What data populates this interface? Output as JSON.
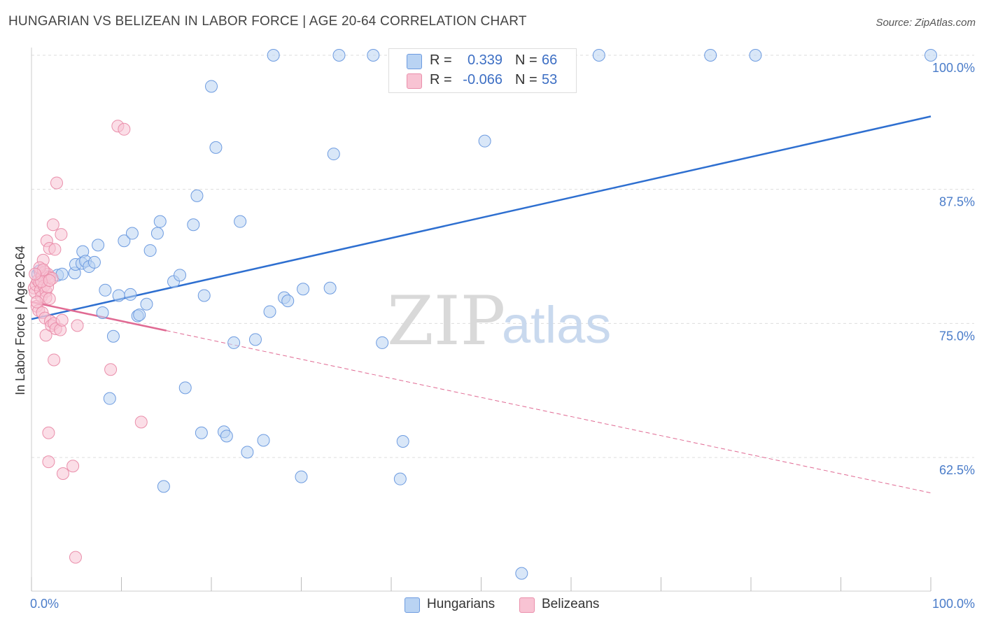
{
  "title": "HUNGARIAN VS BELIZEAN IN LABOR FORCE | AGE 20-64 CORRELATION CHART",
  "source": "Source: ZipAtlas.com",
  "watermark": {
    "zip": "ZIP",
    "atlas": "atlas"
  },
  "colors": {
    "blue_fill": "#b9d3f3",
    "blue_stroke": "#6d9be0",
    "blue_line": "#2e6fd0",
    "pink_fill": "#f8c3d3",
    "pink_stroke": "#ea8fab",
    "pink_line": "#e06a93",
    "grid": "#dddddd",
    "axis_text": "#4a7cc9"
  },
  "legend": {
    "rows": [
      {
        "r_label": "R =",
        "r_value": "0.339",
        "n_label": "N =",
        "n_value": "66",
        "color": "#b9d3f3"
      },
      {
        "r_label": "R =",
        "r_value": "-0.066",
        "n_label": "N =",
        "n_value": "53",
        "color": "#f8c3d3"
      }
    ]
  },
  "bottom_legend": [
    {
      "label": "Hungarians",
      "color": "#b9d3f3"
    },
    {
      "label": "Belizeans",
      "color": "#f8c3d3"
    }
  ],
  "chart_data": {
    "type": "scatter",
    "title": "HUNGARIAN VS BELIZEAN IN LABOR FORCE | AGE 20-64 CORRELATION CHART",
    "xlabel": "",
    "ylabel": "In Labor Force | Age 20-64",
    "xlim": [
      0,
      100
    ],
    "ylim": [
      51.5,
      100.5
    ],
    "y_gridlines": [
      62.5,
      75.0,
      87.5,
      100.0
    ],
    "y_tick_labels": [
      "62.5%",
      "75.0%",
      "87.5%",
      "100.0%"
    ],
    "x_tick_values": [
      0,
      10,
      20,
      30,
      40,
      50,
      60,
      70,
      80,
      90,
      100
    ],
    "x_tick_labels": [
      "0.0%",
      "100.0%"
    ],
    "legend_position": "top-center",
    "series": [
      {
        "name": "Hungarians",
        "r": 0.339,
        "n": 66,
        "trend": {
          "x": [
            0,
            100
          ],
          "y": [
            75.4,
            94.3
          ],
          "dashed_from": null
        },
        "points": [
          [
            0.7,
            79.6
          ],
          [
            0.9,
            79.9
          ],
          [
            1.1,
            79.4
          ],
          [
            1.3,
            79.2
          ],
          [
            1.6,
            79.4
          ],
          [
            2.9,
            79.5
          ],
          [
            3.4,
            79.6
          ],
          [
            4.8,
            79.7
          ],
          [
            4.9,
            80.5
          ],
          [
            5.6,
            80.6
          ],
          [
            5.7,
            81.7
          ],
          [
            6.0,
            80.8
          ],
          [
            6.4,
            80.3
          ],
          [
            7.0,
            80.7
          ],
          [
            7.4,
            82.3
          ],
          [
            7.9,
            76.0
          ],
          [
            8.2,
            78.1
          ],
          [
            8.7,
            68.0
          ],
          [
            9.1,
            73.8
          ],
          [
            9.7,
            77.6
          ],
          [
            10.3,
            82.7
          ],
          [
            11.0,
            77.7
          ],
          [
            11.2,
            83.4
          ],
          [
            11.8,
            75.7
          ],
          [
            12.0,
            75.8
          ],
          [
            12.8,
            76.8
          ],
          [
            13.2,
            81.8
          ],
          [
            14.0,
            83.4
          ],
          [
            14.3,
            84.5
          ],
          [
            14.7,
            59.8
          ],
          [
            15.8,
            78.9
          ],
          [
            16.5,
            79.5
          ],
          [
            17.1,
            69.0
          ],
          [
            18.0,
            84.2
          ],
          [
            18.4,
            86.9
          ],
          [
            18.9,
            64.8
          ],
          [
            19.2,
            77.6
          ],
          [
            20.0,
            97.1
          ],
          [
            20.5,
            91.4
          ],
          [
            21.4,
            64.9
          ],
          [
            21.7,
            64.5
          ],
          [
            22.5,
            73.2
          ],
          [
            23.2,
            84.5
          ],
          [
            24.0,
            63.0
          ],
          [
            24.9,
            73.5
          ],
          [
            25.8,
            64.1
          ],
          [
            26.5,
            76.1
          ],
          [
            26.9,
            100.0
          ],
          [
            28.1,
            77.4
          ],
          [
            28.5,
            77.1
          ],
          [
            30.0,
            60.7
          ],
          [
            30.2,
            78.2
          ],
          [
            33.2,
            78.3
          ],
          [
            33.6,
            90.8
          ],
          [
            34.2,
            100.0
          ],
          [
            38.0,
            100.0
          ],
          [
            39.0,
            73.2
          ],
          [
            41.0,
            60.5
          ],
          [
            41.3,
            64.0
          ],
          [
            47.3,
            100.0
          ],
          [
            50.4,
            92.0
          ],
          [
            54.5,
            51.7
          ],
          [
            63.1,
            100.0
          ],
          [
            75.5,
            100.0
          ],
          [
            80.5,
            100.0
          ],
          [
            100.0,
            100.0
          ]
        ]
      },
      {
        "name": "Belizeans",
        "r": -0.066,
        "n": 53,
        "trend": {
          "x": [
            0,
            100
          ],
          "y": [
            77.0,
            59.2
          ],
          "dashed_from": 15
        },
        "points": [
          [
            0.3,
            78.3
          ],
          [
            0.4,
            77.9
          ],
          [
            0.5,
            78.6
          ],
          [
            0.6,
            76.6
          ],
          [
            0.7,
            79.0
          ],
          [
            0.8,
            76.2
          ],
          [
            0.9,
            78.8
          ],
          [
            1.0,
            78.1
          ],
          [
            1.0,
            79.7
          ],
          [
            1.1,
            77.5
          ],
          [
            1.2,
            79.4
          ],
          [
            1.2,
            76.0
          ],
          [
            1.3,
            80.9
          ],
          [
            1.4,
            78.5
          ],
          [
            1.5,
            75.5
          ],
          [
            1.5,
            79.8
          ],
          [
            1.6,
            78.0
          ],
          [
            1.6,
            77.4
          ],
          [
            1.6,
            73.9
          ],
          [
            1.7,
            82.7
          ],
          [
            1.8,
            79.6
          ],
          [
            1.8,
            78.4
          ],
          [
            1.9,
            64.8
          ],
          [
            1.9,
            62.1
          ],
          [
            2.0,
            82.0
          ],
          [
            2.0,
            79.3
          ],
          [
            2.0,
            77.3
          ],
          [
            2.1,
            75.2
          ],
          [
            2.2,
            74.8
          ],
          [
            2.3,
            79.2
          ],
          [
            2.4,
            84.2
          ],
          [
            2.5,
            75.0
          ],
          [
            2.5,
            71.6
          ],
          [
            2.6,
            81.9
          ],
          [
            2.7,
            74.5
          ],
          [
            2.8,
            88.1
          ],
          [
            3.2,
            74.4
          ],
          [
            3.3,
            83.3
          ],
          [
            3.4,
            75.3
          ],
          [
            3.5,
            61.0
          ],
          [
            4.6,
            61.7
          ],
          [
            4.9,
            53.2
          ],
          [
            5.1,
            74.8
          ],
          [
            8.8,
            70.7
          ],
          [
            9.6,
            93.4
          ],
          [
            10.3,
            93.1
          ],
          [
            12.2,
            65.8
          ],
          [
            0.9,
            80.2
          ],
          [
            1.3,
            80.0
          ],
          [
            0.6,
            77.0
          ],
          [
            1.1,
            78.9
          ],
          [
            0.4,
            79.6
          ],
          [
            2.0,
            79.0
          ]
        ]
      }
    ]
  }
}
